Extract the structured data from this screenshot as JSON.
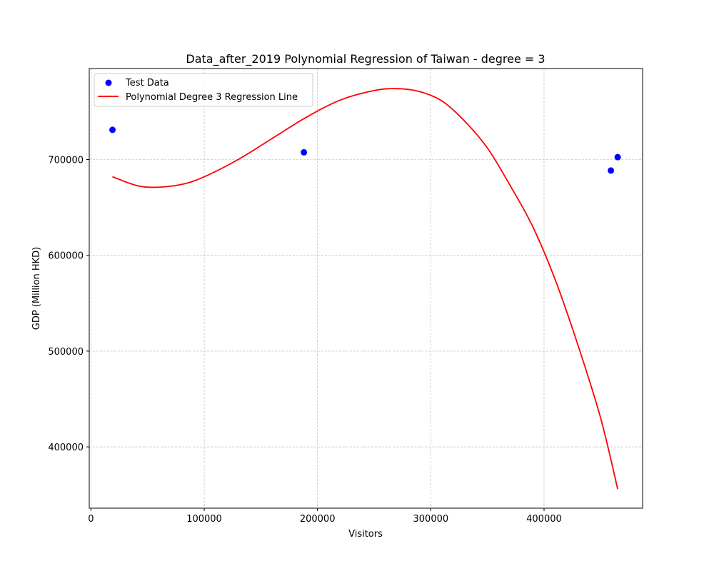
{
  "chart_data": {
    "type": "scatter",
    "title": "Data_after_2019 Polynomial Regression of Taiwan - degree = 3",
    "xlabel": "Visitors",
    "ylabel": "GDP (Million HKD)",
    "xlim": [
      -1500,
      487000
    ],
    "ylim": [
      336000,
      795000
    ],
    "x_ticks": [
      0,
      100000,
      200000,
      300000,
      400000
    ],
    "x_tick_labels": [
      "0",
      "100000",
      "200000",
      "300000",
      "400000"
    ],
    "y_ticks": [
      400000,
      500000,
      600000,
      700000
    ],
    "y_tick_labels": [
      "400000",
      "500000",
      "600000",
      "700000"
    ],
    "grid": true,
    "legend_position": "top-left",
    "series": [
      {
        "name": "Test Data",
        "kind": "scatter",
        "color": "#0000ff",
        "points": [
          {
            "x": 19000,
            "y": 731000
          },
          {
            "x": 188000,
            "y": 707500
          },
          {
            "x": 459000,
            "y": 688500
          },
          {
            "x": 465000,
            "y": 702500
          }
        ]
      },
      {
        "name": "Polynomial Degree 3 Regression Line",
        "kind": "line",
        "color": "#ff0000",
        "points": [
          {
            "x": 19000,
            "y": 682000
          },
          {
            "x": 40000,
            "y": 673000
          },
          {
            "x": 57000,
            "y": 671000
          },
          {
            "x": 80000,
            "y": 674000
          },
          {
            "x": 100000,
            "y": 682000
          },
          {
            "x": 130000,
            "y": 700000
          },
          {
            "x": 160000,
            "y": 722000
          },
          {
            "x": 190000,
            "y": 744000
          },
          {
            "x": 220000,
            "y": 762000
          },
          {
            "x": 250000,
            "y": 772000
          },
          {
            "x": 270000,
            "y": 774000
          },
          {
            "x": 290000,
            "y": 771000
          },
          {
            "x": 310000,
            "y": 761000
          },
          {
            "x": 330000,
            "y": 740000
          },
          {
            "x": 350000,
            "y": 712000
          },
          {
            "x": 370000,
            "y": 673000
          },
          {
            "x": 390000,
            "y": 630000
          },
          {
            "x": 410000,
            "y": 574000
          },
          {
            "x": 430000,
            "y": 506000
          },
          {
            "x": 450000,
            "y": 430000
          },
          {
            "x": 465000,
            "y": 356000
          }
        ]
      }
    ]
  }
}
